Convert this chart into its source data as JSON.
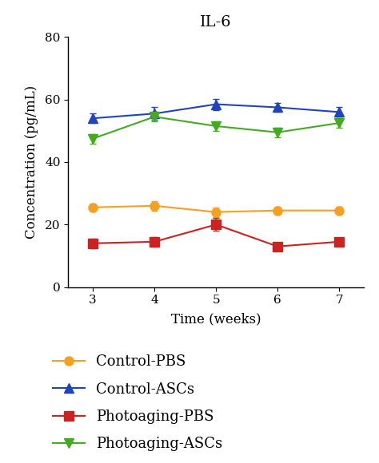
{
  "title": "IL-6",
  "xlabel": "Time (weeks)",
  "ylabel": "Concentration (pg/mL)",
  "x": [
    3,
    4,
    5,
    6,
    7
  ],
  "series": [
    {
      "label": "Control-PBS",
      "y": [
        25.5,
        26.0,
        24.0,
        24.5,
        24.5
      ],
      "yerr": [
        1.2,
        1.5,
        1.5,
        1.2,
        1.2
      ],
      "color": "#F5A020",
      "marker": "o",
      "linestyle": "-"
    },
    {
      "label": "Control-ASCs",
      "y": [
        54.0,
        55.5,
        58.5,
        57.5,
        56.0
      ],
      "yerr": [
        1.5,
        2.0,
        1.8,
        1.5,
        1.5
      ],
      "color": "#2244BB",
      "marker": "^",
      "linestyle": "-"
    },
    {
      "label": "Photoaging-PBS",
      "y": [
        14.0,
        14.5,
        20.0,
        13.0,
        14.5
      ],
      "yerr": [
        1.5,
        1.5,
        2.0,
        1.2,
        1.2
      ],
      "color": "#CC2222",
      "marker": "s",
      "linestyle": "-"
    },
    {
      "label": "Photoaging-ASCs",
      "y": [
        47.5,
        54.5,
        51.5,
        49.5,
        52.5
      ],
      "yerr": [
        1.5,
        1.5,
        1.5,
        1.5,
        1.5
      ],
      "color": "#44AA22",
      "marker": "v",
      "linestyle": "-"
    }
  ],
  "ylim": [
    0,
    80
  ],
  "yticks": [
    0,
    20,
    40,
    60,
    80
  ],
  "xlim": [
    2.6,
    7.4
  ],
  "xticks": [
    3,
    4,
    5,
    6,
    7
  ],
  "legend_fontsize": 13,
  "title_fontsize": 14,
  "label_fontsize": 12,
  "tick_fontsize": 11,
  "markersize": 8,
  "linewidth": 1.5,
  "capsize": 3,
  "elinewidth": 1.2,
  "background_color": "#ffffff",
  "font_family": "DejaVu Serif"
}
